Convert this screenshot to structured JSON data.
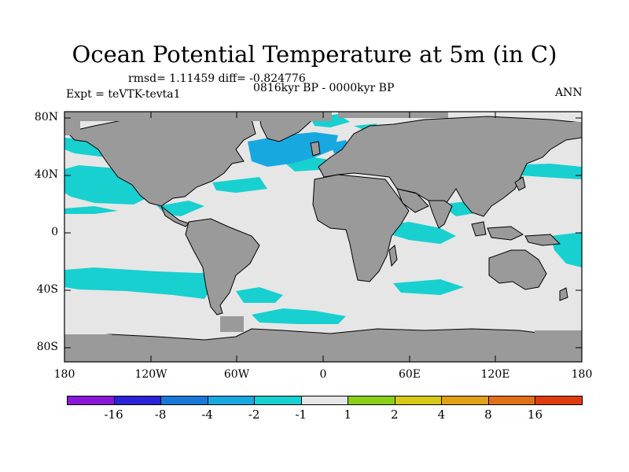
{
  "title": "Ocean Potential Temperature at 5m (in C)",
  "stats": "rmsd= 1.11459 diff= -0.824776",
  "period": "0816kyr BP - 0000kyr BP",
  "experiment": "Expt = teVTK-tevta1",
  "season": "ANN",
  "lat_labels": [
    "80N",
    "40N",
    "0",
    "40S",
    "80S"
  ],
  "lon_labels": [
    "180",
    "120W",
    "60W",
    "0",
    "60E",
    "120E",
    "180"
  ],
  "colorbar": {
    "labels": [
      "-16",
      "-8",
      "-4",
      "-2",
      "-1",
      "1",
      "2",
      "4",
      "8",
      "16"
    ],
    "colors": [
      "#8a18d8",
      "#2a23d8",
      "#1878d8",
      "#18a8e0",
      "#18d0d0",
      "#e6e6e6",
      "#8ad018",
      "#d8c818",
      "#e0a018",
      "#e07018",
      "#e03a10"
    ]
  },
  "map_colors": {
    "land": "#9a9a9a",
    "ocean_neutral": "#e6e6e6",
    "cool_1": "#18d0d0",
    "cool_2": "#18a8e0",
    "coast": "#000000"
  }
}
